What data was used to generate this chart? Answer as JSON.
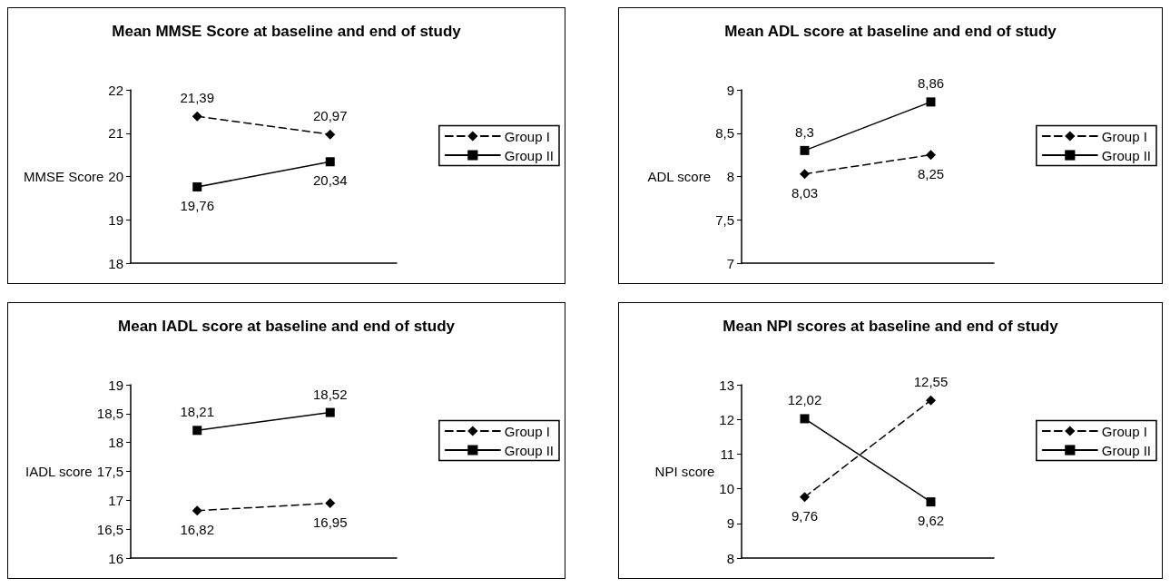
{
  "chart_data": [
    {
      "type": "line",
      "title": "Mean MMSE Score at baseline and end of study",
      "ylabel": "MMSE Score",
      "categories": [
        null,
        null
      ],
      "ylim": [
        18,
        22
      ],
      "yticks": [
        18,
        19,
        20,
        21,
        22
      ],
      "legend": "right",
      "series": [
        {
          "name": "Group I",
          "color": "#000000",
          "values": [
            21.39,
            20.97
          ],
          "value_labels": [
            "21,39",
            "20,97"
          ],
          "marker": "diamond",
          "line_style": "dashed"
        },
        {
          "name": "Group II",
          "color": "#000000",
          "values": [
            19.76,
            20.34
          ],
          "value_labels": [
            "19,76",
            "20,34"
          ],
          "marker": "square",
          "line_style": "solid"
        }
      ]
    },
    {
      "type": "line",
      "title": "Mean ADL score at baseline and end of study",
      "ylabel": "ADL score",
      "categories": [
        null,
        null
      ],
      "ylim": [
        7,
        9
      ],
      "yticks": [
        7,
        {
          "value": 7.5,
          "label": "7,5"
        },
        8,
        {
          "value": 8.5,
          "label": "8,5"
        },
        9
      ],
      "legend": "right",
      "series": [
        {
          "name": "Group I",
          "color": "#000000",
          "values": [
            8.03,
            8.25
          ],
          "value_labels": [
            "8,03",
            "8,25"
          ],
          "marker": "diamond",
          "line_style": "dashed"
        },
        {
          "name": "Group II",
          "color": "#000000",
          "values": [
            8.3,
            8.86
          ],
          "value_labels": [
            "8,3",
            "8,86"
          ],
          "marker": "square",
          "line_style": "solid"
        }
      ]
    },
    {
      "type": "line",
      "title": "Mean IADL score at baseline and end of study",
      "ylabel": "IADL score",
      "categories": [
        null,
        null
      ],
      "ylim": [
        16,
        19
      ],
      "yticks": [
        16,
        {
          "value": 16.5,
          "label": "16,5"
        },
        17,
        {
          "value": 17.5,
          "label": "17,5"
        },
        18,
        {
          "value": 18.5,
          "label": "18,5"
        },
        19
      ],
      "legend": "right",
      "series": [
        {
          "name": "Group I",
          "color": "#000000",
          "values": [
            16.82,
            16.95
          ],
          "value_labels": [
            "16,82",
            "16,95"
          ],
          "marker": "diamond",
          "line_style": "dashed"
        },
        {
          "name": "Group II",
          "color": "#000000",
          "values": [
            18.21,
            18.52
          ],
          "value_labels": [
            "18,21",
            "18,52"
          ],
          "marker": "square",
          "line_style": "solid"
        }
      ]
    },
    {
      "type": "line",
      "title": "Mean NPI scores at baseline and end of study",
      "ylabel": "NPI score",
      "categories": [
        null,
        null
      ],
      "ylim": [
        8,
        13
      ],
      "yticks": [
        8,
        9,
        10,
        11,
        12,
        13
      ],
      "legend": "right",
      "series": [
        {
          "name": "Group I",
          "color": "#000000",
          "values": [
            9.76,
            12.55
          ],
          "value_labels": [
            "9,76",
            "12,55"
          ],
          "marker": "diamond",
          "line_style": "dashed"
        },
        {
          "name": "Group II",
          "color": "#000000",
          "values": [
            12.02,
            9.62
          ],
          "value_labels": [
            "12,02",
            "9,62"
          ],
          "marker": "square",
          "line_style": "solid"
        }
      ]
    }
  ]
}
